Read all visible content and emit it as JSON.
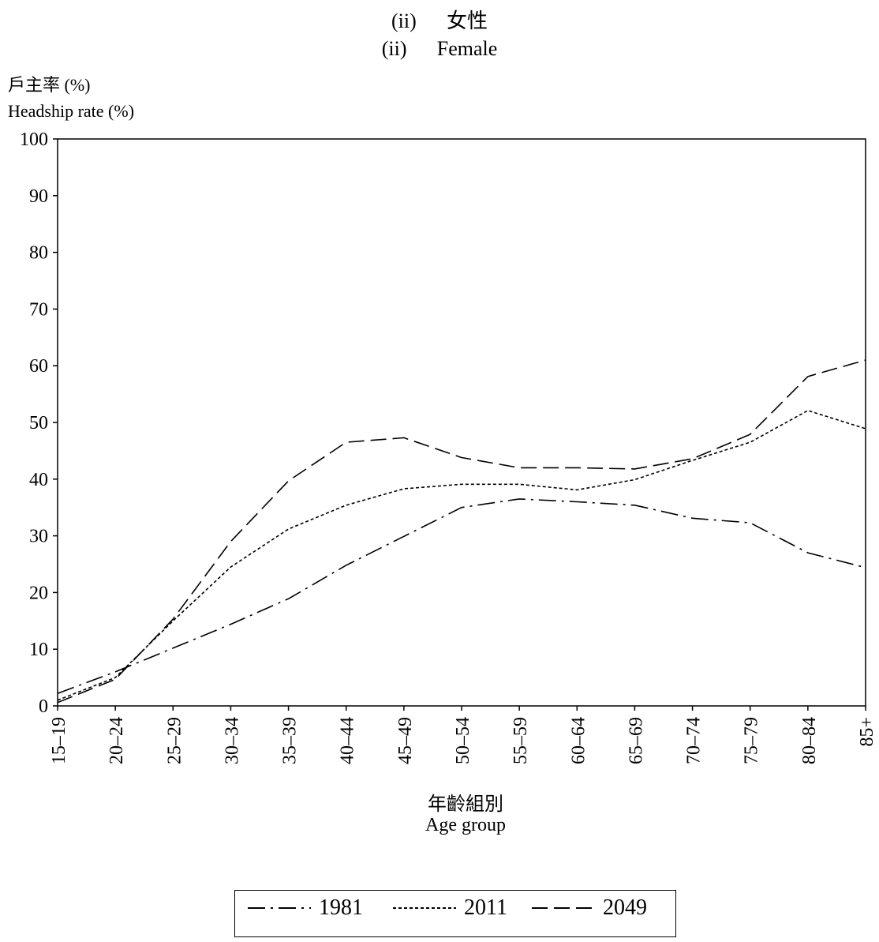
{
  "title": {
    "line1_num": "(ii)",
    "line1_text": "女性",
    "line2_num": "(ii)",
    "line2_text": "Female"
  },
  "axis": {
    "ylabel_zh": "戶主率 (%)",
    "ylabel_en": "Headship rate (%)",
    "xlabel_zh": "年齡組別",
    "xlabel_en": "Age group"
  },
  "chart_data": {
    "type": "line",
    "title": "Female",
    "xlabel": "Age group",
    "ylabel": "Headship rate (%)",
    "ylim": [
      0,
      100
    ],
    "yticks": [
      0,
      10,
      20,
      30,
      40,
      50,
      60,
      70,
      80,
      90,
      100
    ],
    "grid": false,
    "legend_position": "bottom",
    "categories": [
      "15–19",
      "20–24",
      "25–29",
      "30–34",
      "35–39",
      "40–44",
      "45–49",
      "50–54",
      "55–59",
      "60–64",
      "65–69",
      "70–74",
      "75–79",
      "80–84",
      "85+"
    ],
    "series": [
      {
        "name": "1981",
        "dash": "dash-dot",
        "color": "#000000",
        "values": [
          2.2,
          6.0,
          10.2,
          14.4,
          18.9,
          24.8,
          29.9,
          35.0,
          36.5,
          36.0,
          35.4,
          33.1,
          32.3,
          27.0,
          24.4
        ]
      },
      {
        "name": "2011",
        "dash": "dotted",
        "color": "#000000",
        "values": [
          1.0,
          5.0,
          15.0,
          24.5,
          31.2,
          35.4,
          38.3,
          39.1,
          39.1,
          38.1,
          39.9,
          43.3,
          46.5,
          52.1,
          48.9
        ]
      },
      {
        "name": "2049",
        "dash": "dashed",
        "color": "#000000",
        "values": [
          0.6,
          4.7,
          15.3,
          29.0,
          39.7,
          46.5,
          47.3,
          43.8,
          42.0,
          42.0,
          41.8,
          43.6,
          47.9,
          58.1,
          61.0
        ]
      }
    ]
  }
}
